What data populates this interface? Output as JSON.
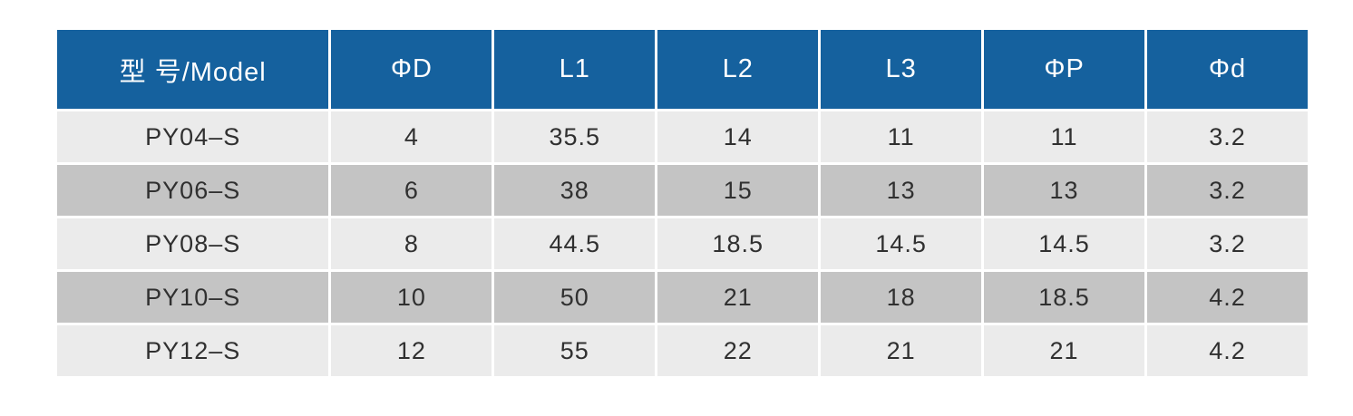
{
  "table": {
    "headers": [
      "型 号/Model",
      "ΦD",
      "L1",
      "L2",
      "L3",
      "ΦP",
      "Φd"
    ],
    "rows": [
      [
        "PY04–S",
        "4",
        "35.5",
        "14",
        "11",
        "11",
        "3.2"
      ],
      [
        "PY06–S",
        "6",
        "38",
        "15",
        "13",
        "13",
        "3.2"
      ],
      [
        "PY08–S",
        "8",
        "44.5",
        "18.5",
        "14.5",
        "14.5",
        "3.2"
      ],
      [
        "PY10–S",
        "10",
        "50",
        "21",
        "18",
        "18.5",
        "4.2"
      ],
      [
        "PY12–S",
        "12",
        "55",
        "22",
        "21",
        "21",
        "4.2"
      ]
    ],
    "colors": {
      "page_bg": "#ffffff",
      "header_bg": "#15619e",
      "header_text": "#ffffff",
      "row_light": "#ebebeb",
      "row_dark": "#c4c4c4",
      "cell_text": "#303030",
      "divider": "#ffffff"
    }
  }
}
